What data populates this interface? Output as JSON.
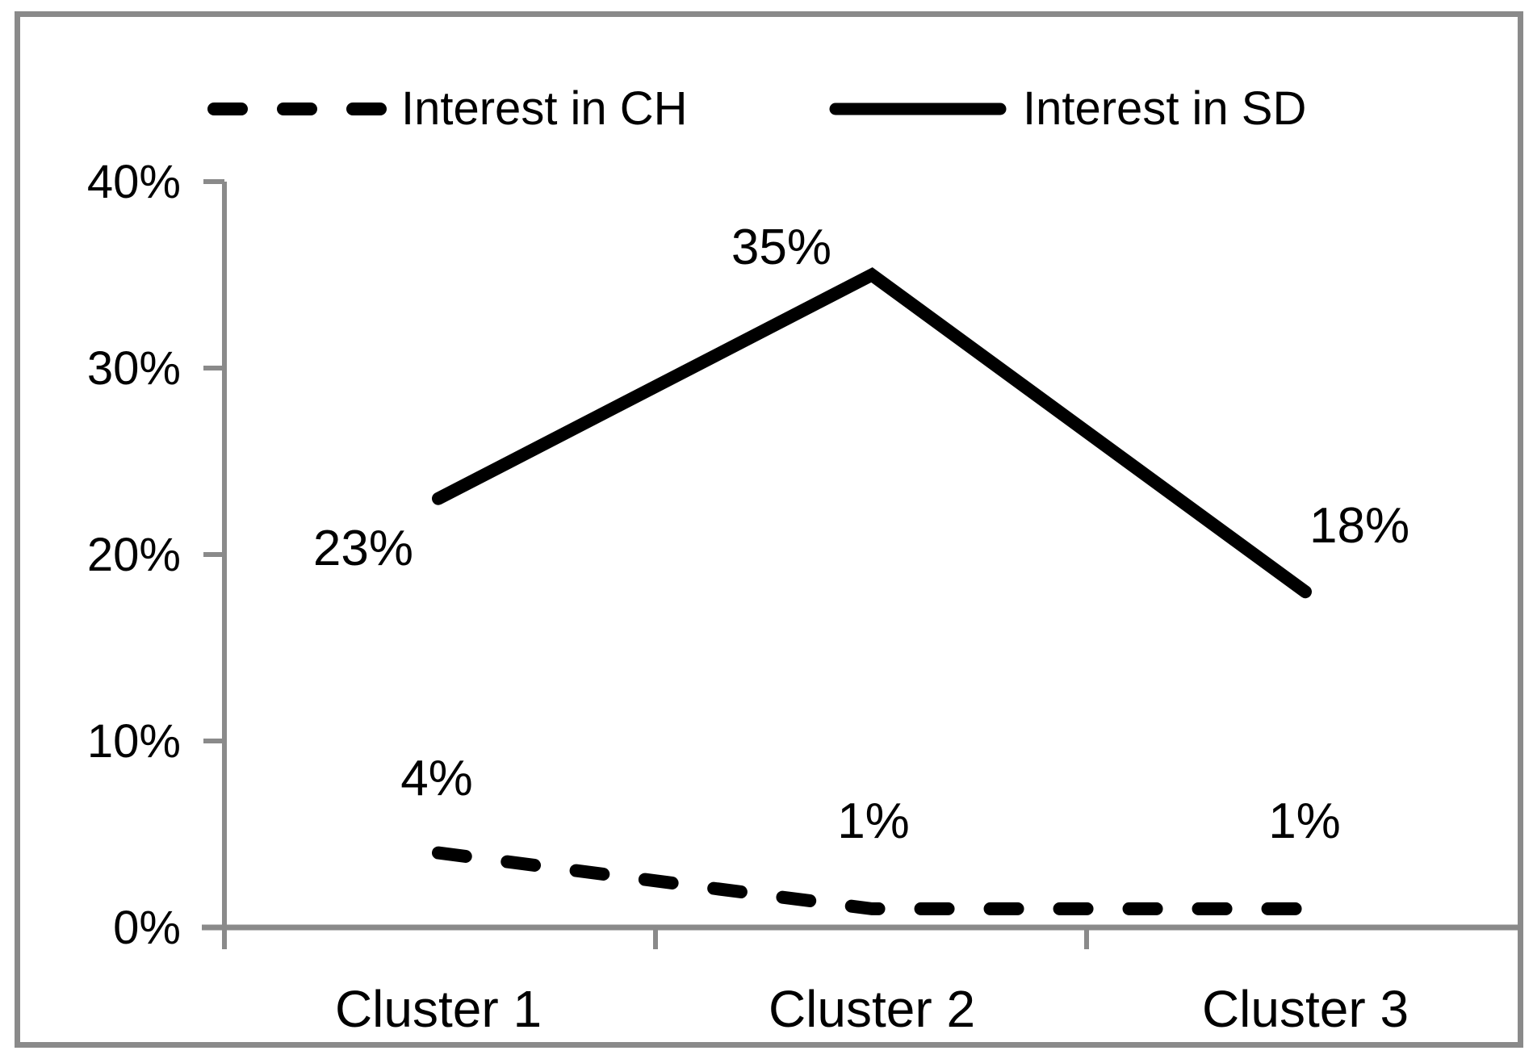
{
  "chart_data": {
    "type": "line",
    "title": "",
    "xlabel": "",
    "ylabel": "",
    "categories": [
      "Cluster 1",
      "Cluster 2",
      "Cluster 3"
    ],
    "series": [
      {
        "name": "Interest in CH",
        "line_style": "dashed",
        "color": "#000000",
        "values": [
          4,
          1,
          1
        ],
        "point_labels": [
          "4%",
          "1%",
          "1%"
        ]
      },
      {
        "name": "Interest in SD",
        "line_style": "solid",
        "color": "#000000",
        "values": [
          23,
          35,
          18
        ],
        "point_labels": [
          "23%",
          "35%",
          "18%"
        ]
      }
    ],
    "y_axis": {
      "min": 0,
      "max": 40,
      "format": "percent",
      "tick_values": [
        0,
        10,
        20,
        30,
        40
      ],
      "tick_labels": [
        "0%",
        "10%",
        "20%",
        "30%",
        "40%"
      ]
    },
    "grid": false,
    "legend_position": "top",
    "colors": {
      "series": "#000000",
      "axis": "#8a8a8a",
      "frame_border": "#8a8a8a",
      "background": "#ffffff",
      "text": "#000000"
    }
  }
}
